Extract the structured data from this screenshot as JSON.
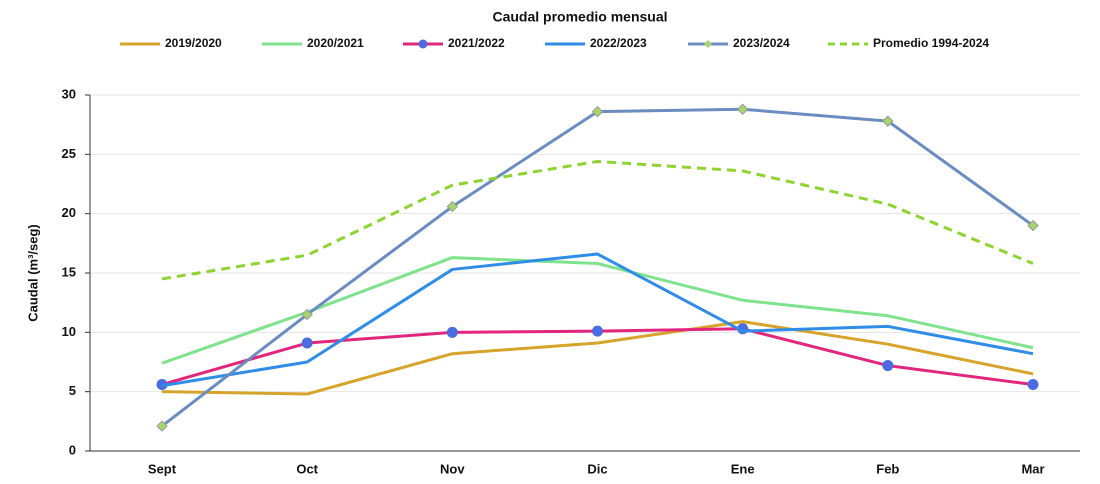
{
  "chart_data": {
    "type": "line",
    "title": "Caudal promedio mensual",
    "ylabel": "Caudal (m³/seg)",
    "categories": [
      "Sept",
      "Oct",
      "Nov",
      "Dic",
      "Ene",
      "Feb",
      "Mar"
    ],
    "ylim": [
      0,
      30
    ],
    "yticks": [
      0,
      5,
      10,
      15,
      20,
      25,
      30
    ],
    "grid": true,
    "legend": "top",
    "series": [
      {
        "name": "2019/2020",
        "color": "#d6a32b",
        "values": [
          5.0,
          4.8,
          8.2,
          9.1,
          10.9,
          9.0,
          6.5
        ]
      },
      {
        "name": "2020/2021",
        "color": "#7ee38c",
        "values": [
          7.4,
          11.7,
          16.3,
          15.8,
          12.7,
          11.4,
          8.7
        ]
      },
      {
        "name": "2021/2022",
        "color": "#e2267e",
        "marker": "circle",
        "marker_color": "#4a6ce0",
        "values": [
          5.6,
          9.1,
          10.0,
          10.1,
          10.3,
          7.2,
          5.6
        ]
      },
      {
        "name": "2022/2023",
        "color": "#2f8de8",
        "values": [
          5.5,
          7.5,
          15.3,
          16.6,
          10.1,
          10.5,
          8.2
        ]
      },
      {
        "name": "2023/2024",
        "color": "#6a8cc0",
        "marker": "diamond",
        "marker_color": "#a8d46c",
        "values": [
          2.1,
          11.5,
          20.6,
          28.6,
          28.8,
          27.8,
          19.0
        ]
      },
      {
        "name": "Promedio 1994-2024",
        "color": "#8ed431",
        "dashed": true,
        "values": [
          14.5,
          16.5,
          22.4,
          24.4,
          23.6,
          20.8,
          15.8
        ]
      }
    ]
  }
}
